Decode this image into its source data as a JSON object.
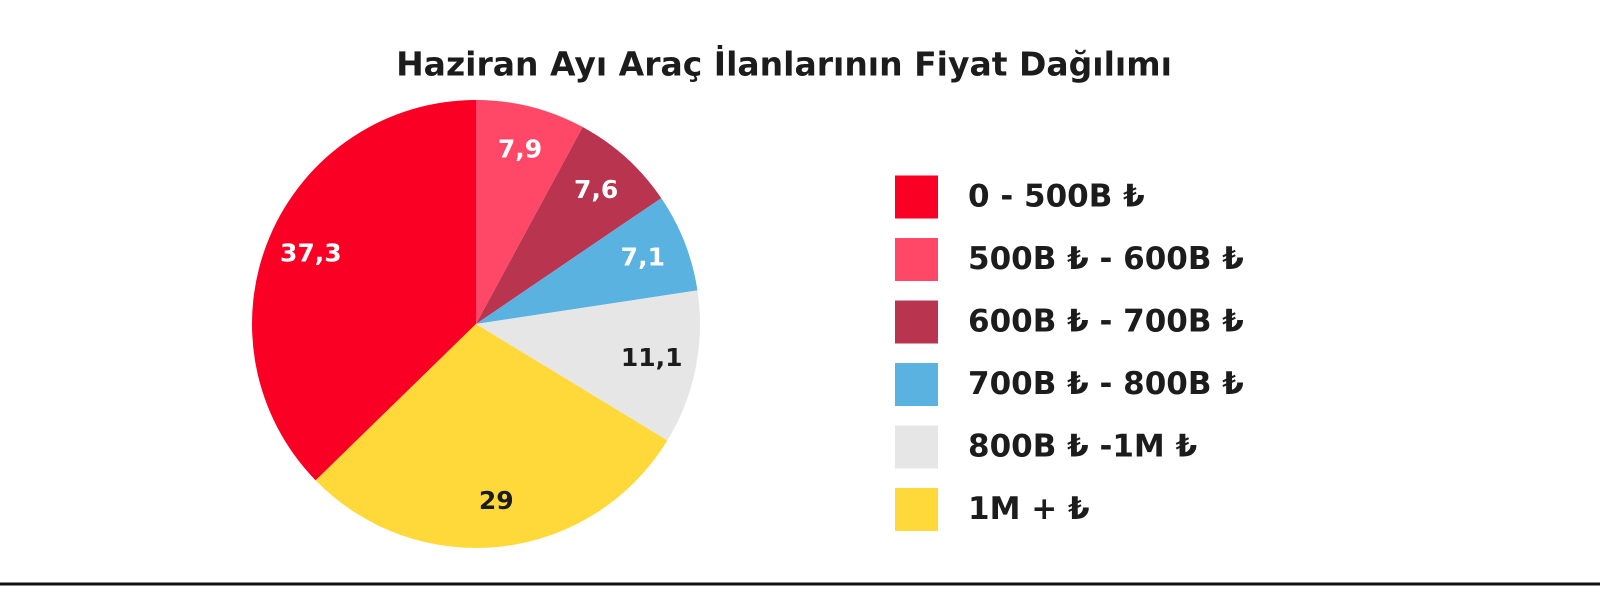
{
  "chart_data": {
    "type": "pie",
    "title": "Haziran Ayı Araç İlanlarının Fiyat Dağılımı",
    "categories": [
      "0 - 500B ₺",
      "500B ₺ - 600B ₺",
      "600B ₺ - 700B ₺",
      "700B ₺ - 800B ₺",
      "800B ₺ -1M ₺",
      "1M + ₺"
    ],
    "values": [
      37.3,
      7.9,
      7.6,
      7.1,
      11.1,
      29
    ],
    "value_labels": [
      "37,3",
      "7,9",
      "7,6",
      "7,1",
      "11,1",
      "29"
    ],
    "colors": [
      "#f90024",
      "#ff4867",
      "#b9344f",
      "#5ab2e0",
      "#e6e6e6",
      "#ffd93a"
    ],
    "legend": "right"
  }
}
